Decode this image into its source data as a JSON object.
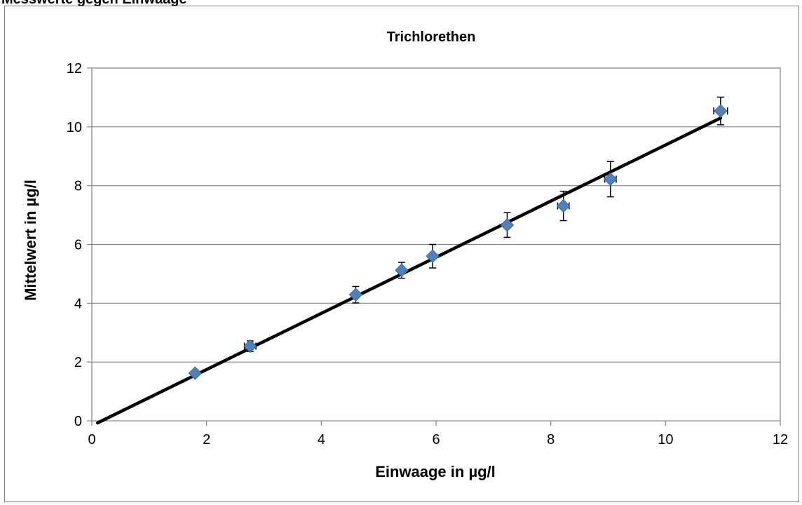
{
  "page": {
    "clipped_heading": "Messwerte gegen Einwaage"
  },
  "chart_data": {
    "type": "scatter",
    "title": "Trichlorethen",
    "xlabel": "Einwaage in µg/l",
    "ylabel": "Mittelwert in µg/l",
    "xlim": [
      0,
      12
    ],
    "ylim": [
      0,
      12
    ],
    "xticks": [
      0,
      2,
      4,
      6,
      8,
      10,
      12
    ],
    "yticks": [
      0,
      2,
      4,
      6,
      8,
      10,
      12
    ],
    "grid": "horizontal",
    "legend": "none",
    "series": [
      {
        "marker": "diamond",
        "color": "#4f81bd",
        "x": [
          1.8,
          2.76,
          4.6,
          5.4,
          5.94,
          7.24,
          8.22,
          9.04,
          10.96
        ],
        "y": [
          1.62,
          2.54,
          4.29,
          5.12,
          5.6,
          6.66,
          7.31,
          8.22,
          10.54
        ],
        "y_error": [
          0.1,
          0.18,
          0.28,
          0.27,
          0.4,
          0.42,
          0.5,
          0.6,
          0.47
        ],
        "x_error": [
          0.05,
          0.1,
          0.05,
          0.05,
          0.05,
          0.05,
          0.1,
          0.1,
          0.12
        ]
      }
    ],
    "trendline": {
      "type": "linear",
      "color": "#000000",
      "x": [
        0.1,
        10.96
      ],
      "y": [
        -0.07,
        10.3
      ]
    }
  }
}
